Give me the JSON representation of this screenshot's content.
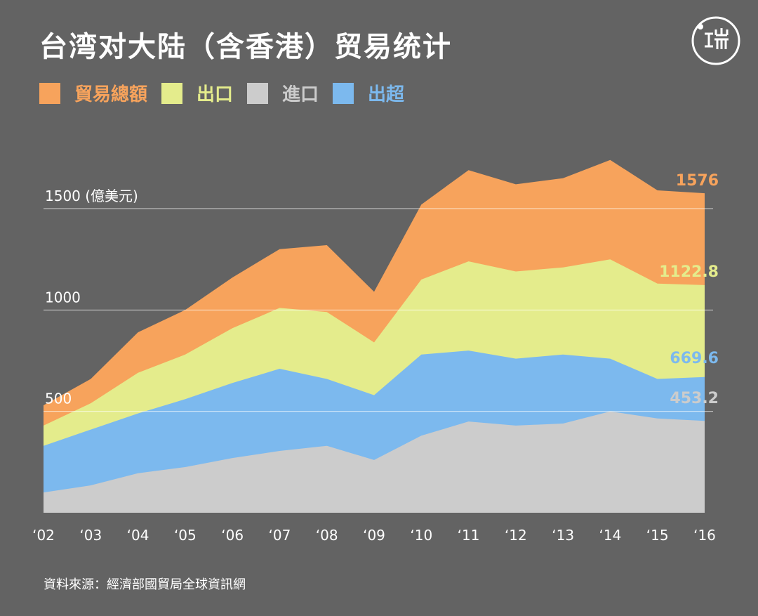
{
  "header": {
    "title": "台湾对大陆（含香港）贸易统计",
    "logo_icon": "initium-logo-icon"
  },
  "legend": [
    {
      "label": "貿易總額",
      "color": "#f7a35c"
    },
    {
      "label": "出口",
      "color": "#e4ec8c"
    },
    {
      "label": "進口",
      "color": "#cccccc"
    },
    {
      "label": "出超",
      "color": "#7cb9ee"
    }
  ],
  "footer": {
    "source": "資料來源：經濟部國貿局全球資訊網"
  },
  "chart_data": {
    "type": "area",
    "title": "台湾对大陆（含香港）贸易统计",
    "ylabel": "(億美元)",
    "ylim": [
      0,
      2300
    ],
    "y_ticks": [
      500,
      1000,
      1500
    ],
    "y_tick_labels": [
      "500",
      "1000",
      "1500 (億美元)"
    ],
    "grid": true,
    "x_labels": [
      "‘02",
      "‘03",
      "‘04",
      "‘05",
      "‘06",
      "‘07",
      "‘08",
      "‘09",
      "‘10",
      "‘11",
      "‘12",
      "‘13",
      "‘14",
      "‘15",
      "‘16"
    ],
    "series": [
      {
        "name": "貿易總額",
        "color": "#f7a35c",
        "values": [
          530,
          660,
          890,
          1000,
          1160,
          1300,
          1320,
          1090,
          1520,
          1690,
          1620,
          1650,
          1740,
          1590,
          1576
        ]
      },
      {
        "name": "出口",
        "color": "#e4ec8c",
        "values": [
          430,
          540,
          690,
          780,
          910,
          1010,
          990,
          840,
          1150,
          1240,
          1190,
          1210,
          1250,
          1130,
          1122.8
        ]
      },
      {
        "name": "出超",
        "color": "#7cb9ee",
        "values": [
          330,
          410,
          490,
          560,
          640,
          710,
          660,
          580,
          780,
          800,
          760,
          780,
          760,
          660,
          669.6
        ]
      },
      {
        "name": "進口",
        "color": "#cccccc",
        "values": [
          100,
          135,
          195,
          225,
          270,
          305,
          330,
          260,
          380,
          450,
          430,
          440,
          500,
          465,
          453.2
        ]
      }
    ],
    "end_labels": [
      {
        "series": "貿易總額",
        "text": "1576",
        "color": "#f7a35c"
      },
      {
        "series": "出口",
        "text": "1122.8",
        "color": "#e4ec8c"
      },
      {
        "series": "出超",
        "text": "669.6",
        "color": "#7cb9ee"
      },
      {
        "series": "進口",
        "text": "453.2",
        "color": "#cccccc"
      }
    ]
  }
}
